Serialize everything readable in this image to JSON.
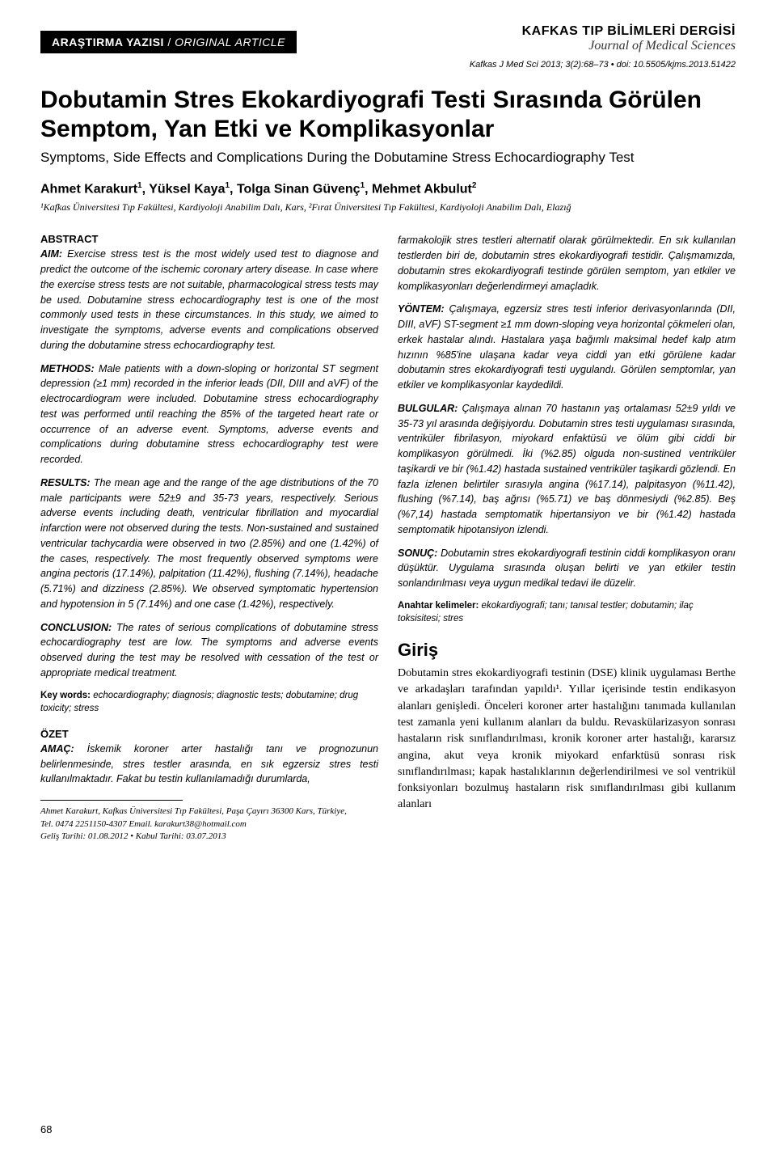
{
  "header": {
    "article_type_bold": "ARAŞTIRMA YAZISI",
    "article_type_sep": " / ",
    "article_type_italic": "ORIGINAL ARTICLE",
    "journal_brand_line1": "KAFKAS TIP BİLİMLERİ DERGİSİ",
    "journal_brand_line2": "Journal of Medical Sciences",
    "citation": "Kafkas J Med Sci 2013; 3(2):68–73  •  doi: 10.5505/kjms.2013.51422"
  },
  "titles": {
    "tr": "Dobutamin Stres Ekokardiyografi Testi Sırasında Görülen Semptom, Yan Etki ve Komplikasyonlar",
    "en": "Symptoms, Side Effects and Complications During the Dobutamine Stress Echocardiography Test"
  },
  "authors_html": "Ahmet Karakurt<sup>1</sup>, Yüksel Kaya<sup>1</sup>, Tolga Sinan Güvenç<sup>1</sup>, Mehmet Akbulut<sup>2</sup>",
  "affiliations": "¹Kafkas Üniversitesi Tıp Fakültesi, Kardiyoloji Anabilim Dalı, Kars, ²Fırat Üniversitesi Tıp Fakültesi, Kardiyoloji Anabilim Dalı, Elazığ",
  "abstract": {
    "heading": "ABSTRACT",
    "aim_label": "AIM:",
    "aim": " Exercise stress test is the most widely used test to diagnose and predict the outcome of the ischemic coronary artery disease. In case where the exercise stress tests are not suitable, pharmacological stress tests may be used. Dobutamine stress echocardiography test is one of the most commonly used tests in these circumstances. In this study, we aimed to investigate the symptoms, adverse events and complications observed during the dobutamine stress echocardiography test.",
    "methods_label": "METHODS:",
    "methods": " Male patients with a down-sloping or horizontal ST segment depression (≥1 mm) recorded in the inferior leads (DII, DIII and aVF) of the electrocardiogram were included. Dobutamine stress echocardiography test was performed until reaching the 85% of the targeted heart rate or occurrence of an adverse event. Symptoms, adverse events and complications during dobutamine stress echocardiography test were recorded.",
    "results_label": "RESULTS:",
    "results": " The mean age and the range of the age distributions of the 70 male participants were 52±9 and 35-73 years, respectively. Serious adverse events including death, ventricular fibrillation and myocardial infarction were not observed during the tests. Non-sustained and sustained ventricular tachycardia were observed in two (2.85%) and one (1.42%) of the cases, respectively. The most frequently observed symptoms were angina pectoris (17.14%), palpitation (11.42%), flushing (7.14%), headache (5.71%) and dizziness (2.85%). We observed symptomatic hypertension and hypotension in 5 (7.14%) and one case (1.42%), respectively.",
    "conclusion_label": "CONCLUSION:",
    "conclusion": " The rates of serious complications of dobutamine stress echocardiography test are low. The symptoms and adverse events observed during the test may be resolved with cessation of the test or appropriate medical treatment.",
    "keywords_label": "Key words:",
    "keywords": " echocardiography; diagnosis; diagnostic tests; dobutamine; drug toxicity; stress"
  },
  "ozet": {
    "heading": "ÖZET",
    "amac_label": "AMAÇ:",
    "amac": " İskemik koroner arter hastalığı tanı ve prognozunun belirlenmesinde, stres testler arasında, en sık egzersiz stres testi kullanılmaktadır. Fakat bu testin kullanılamadığı durumlarda, farmakolojik stres testleri alternatif olarak görülmektedir. En sık kullanılan testlerden biri de, dobutamin stres ekokardiyografi testidir. Çalışmamızda, dobutamin stres ekokardiyografi testinde görülen semptom, yan etkiler ve komplikasyonları değerlendirmeyi amaçladık.",
    "yontem_label": "YÖNTEM:",
    "yontem": " Çalışmaya, egzersiz stres testi inferior derivasyonlarında (DII, DIII, aVF) ST-segment ≥1 mm down-sloping veya horizontal çökmeleri olan, erkek hastalar alındı. Hastalara yaşa bağımlı maksimal hedef kalp atım hızının %85'ine ulaşana kadar veya ciddi yan etki görülene kadar dobutamin stres ekokardiyografi testi uygulandı. Görülen semptomlar, yan etkiler ve komplikasyonlar kaydedildi.",
    "bulgular_label": "BULGULAR:",
    "bulgular": " Çalışmaya alınan 70 hastanın yaş ortalaması 52±9 yıldı ve 35-73 yıl arasında değişiyordu. Dobutamin stres testi uygulaması sırasında, ventriküler fibrilasyon, miyokard enfaktüsü ve ölüm gibi ciddi bir komplikasyon görülmedi. İki (%2.85) olguda non-sustined ventriküler taşikardi ve bir (%1.42) hastada sustained ventriküler taşikardi gözlendi. En fazla izlenen belirtiler sırasıyla angina (%17.14), palpitasyon (%11.42), flushing (%7.14), baş ağrısı (%5.71) ve baş dönmesiydi (%2.85). Beş (%7,14) hastada semptomatik hipertansiyon ve bir (%1.42) hastada semptomatik hipotansiyon izlendi.",
    "sonuc_label": "SONUÇ:",
    "sonuc": " Dobutamin stres ekokardiyografi testinin ciddi komplikasyon oranı düşüktür. Uygulama sırasında oluşan belirti ve yan etkiler testin sonlandırılması veya uygun medikal tedavi ile düzelir.",
    "anahtar_label": "Anahtar kelimeler:",
    "anahtar": " ekokardiyografi; tanı; tanısal testler; dobutamin; ilaç toksisitesi; stres"
  },
  "giris": {
    "heading": "Giriş",
    "body": "Dobutamin stres ekokardiyografi testinin (DSE) klinik uygulaması Berthe ve arkadaşları tarafından yapıldı¹. Yıllar içerisinde testin endikasyon alanları genişledi. Önceleri koroner arter hastalığını tanımada kullanılan test zamanla yeni kullanım alanları da buldu. Revaskülarizasyon sonrası hastaların risk sınıflandırılması, kronik koroner arter hastalığı, kararsız angina, akut veya kronik miyokard enfarktüsü sonrası risk sınıflandırılması; kapak hastalıklarının değerlendirilmesi ve sol ventrikül fonksiyonları bozulmuş hastaların risk sınıflandırılması gibi kullanım alanları"
  },
  "corresponding": {
    "line1": "Ahmet Karakurt, Kafkas Üniversitesi Tıp Fakültesi, Paşa Çayırı 36300 Kars, Türkiye,",
    "line2": "Tel. 0474 2251150-4307 Email. karakurt38@hotmail.com",
    "line3": "Geliş Tarihi: 01.08.2012  •  Kabul Tarihi: 03.07.2013"
  },
  "page_number": "68"
}
